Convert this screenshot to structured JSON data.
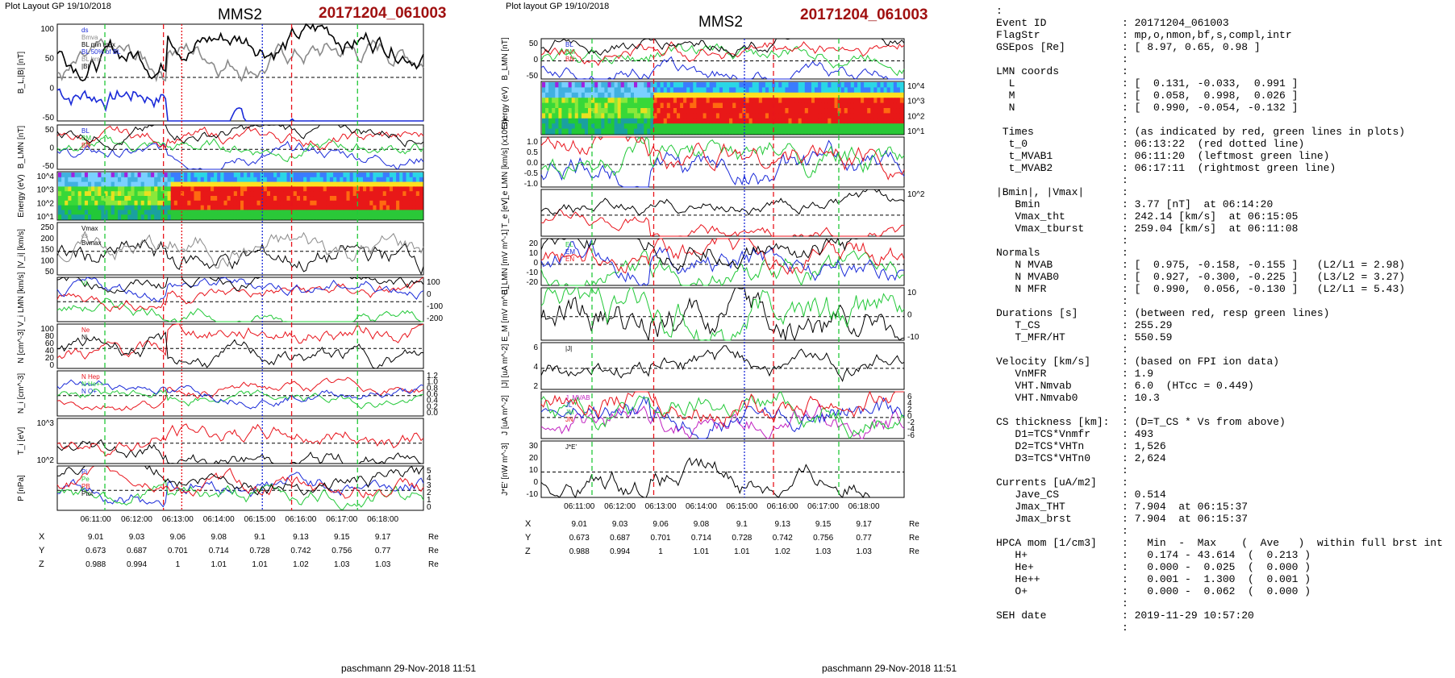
{
  "left": {
    "plot_layout": "Plot Layout GP 19/10/2018",
    "spacecraft": "MMS2",
    "event": "20171204_061003",
    "footer": "paschmann 29-Nov-2018 11:51"
  },
  "mid": {
    "plot_layout": "Plot layout GP 19/10/2018",
    "spacecraft": "MMS2",
    "event": "20171204_061003",
    "footer": "paschmann 29-Nov-2018 11:51"
  },
  "chart_data": [
    {
      "type": "line",
      "id": "left-stack",
      "time_ticks": [
        "06:11:00",
        "06:12:00",
        "06:13:00",
        "06:14:00",
        "06:15:00",
        "06:16:00",
        "06:17:00",
        "06:18:00"
      ],
      "coords": {
        "rows": [
          {
            "label": "X",
            "values": [
              "9.01",
              "9.03",
              "9.06",
              "9.08",
              "9.1",
              "9.13",
              "9.15",
              "9.17"
            ],
            "unit": "Re"
          },
          {
            "label": "Y",
            "values": [
              "0.673",
              "0.687",
              "0.701",
              "0.714",
              "0.728",
              "0.742",
              "0.756",
              "0.77"
            ],
            "unit": "Re"
          },
          {
            "label": "Z",
            "values": [
              "0.988",
              "0.994",
              "1",
              "1.01",
              "1.01",
              "1.02",
              "1.03",
              "1.03"
            ],
            "unit": "Re"
          }
        ]
      },
      "panels": [
        {
          "ylabel": "B_L,|B| [nT]",
          "yticks": [
            "100",
            "50",
            "0",
            "-50"
          ],
          "legend": [
            "ds",
            "Bmva",
            "BL min max",
            "BL 50% of BL",
            "BL brst",
            "|B|"
          ]
        },
        {
          "ylabel": "B_LMN [nT]",
          "yticks": [
            "50",
            "0",
            "-50"
          ],
          "legend": [
            "BL",
            "BM",
            "BN"
          ]
        },
        {
          "ylabel": "Energy (eV)",
          "yticks": [
            "10^4",
            "10^3",
            "10^2",
            "10^1"
          ],
          "spectrogram": true
        },
        {
          "ylabel": "|V_i| [km/s]",
          "yticks": [
            "250",
            "200",
            "150",
            "100",
            "50"
          ],
          "legend": [
            "Vmax",
            "cs",
            "Bvmax"
          ]
        },
        {
          "ylabel": "V_i LMN [km/s]",
          "yticks_right": [
            "100",
            "0",
            "-100",
            "-200"
          ],
          "legend": [
            "VL"
          ]
        },
        {
          "ylabel": "N [cm^-3]",
          "yticks": [
            "100",
            "80",
            "60",
            "40",
            "20",
            "0"
          ],
          "legend": [
            "Ne",
            "Ni"
          ]
        },
        {
          "ylabel": "N_i [cm^-3]",
          "yticks_right": [
            "1.2",
            "1.0",
            "0.8",
            "0.6",
            "0.4",
            "0.2",
            "0.0"
          ],
          "legend": [
            "N Hep",
            "N He++",
            "N O+"
          ]
        },
        {
          "ylabel": "T_i [eV]",
          "yticks": [
            "10^3",
            "10^2"
          ]
        },
        {
          "ylabel": "P [nPa]",
          "yticks_right": [
            "5",
            "4",
            "3",
            "2",
            "1",
            "0"
          ],
          "legend": [
            "Pi",
            "Pe",
            "PB",
            "Ptot"
          ]
        }
      ]
    },
    {
      "type": "line",
      "id": "mid-stack",
      "time_ticks": [
        "06:11:00",
        "06:12:00",
        "06:13:00",
        "06:14:00",
        "06:15:00",
        "06:16:00",
        "06:17:00",
        "06:18:00"
      ],
      "coords": {
        "rows": [
          {
            "label": "X",
            "values": [
              "9.01",
              "9.03",
              "9.06",
              "9.08",
              "9.1",
              "9.13",
              "9.15",
              "9.17"
            ],
            "unit": "Re"
          },
          {
            "label": "Y",
            "values": [
              "0.673",
              "0.687",
              "0.701",
              "0.714",
              "0.728",
              "0.742",
              "0.756",
              "0.77"
            ],
            "unit": "Re"
          },
          {
            "label": "Z",
            "values": [
              "0.988",
              "0.994",
              "1",
              "1.01",
              "1.01",
              "1.02",
              "1.03",
              "1.03"
            ],
            "unit": "Re"
          }
        ]
      },
      "panels": [
        {
          "ylabel": "B_LMN [nT]",
          "yticks": [
            "50",
            "0",
            "-50"
          ],
          "legend": [
            "BL",
            "BM",
            "BN"
          ]
        },
        {
          "ylabel": "Energy (eV)",
          "yticks_right": [
            "10^4",
            "10^3",
            "10^2",
            "10^1"
          ],
          "spectrogram": true
        },
        {
          "ylabel": "V_e LMN [km/s] (x10^3)",
          "yticks": [
            "1.0",
            "0.5",
            "0.0",
            "-0.5",
            "-1.0"
          ]
        },
        {
          "ylabel": "T_e [eV]",
          "yticks_right": [
            "10^2"
          ]
        },
        {
          "ylabel": "E_LMN [mV m^-1]",
          "yticks": [
            "20",
            "10",
            "0",
            "-10",
            "-20"
          ],
          "legend": [
            "EL",
            "EM",
            "EN"
          ]
        },
        {
          "ylabel": "E_M [mV m^-1]",
          "yticks_right": [
            "10",
            "0",
            "-10"
          ]
        },
        {
          "ylabel": "|J| [uA m^-2]",
          "yticks": [
            "6",
            "4",
            "2"
          ],
          "legend": [
            "|J|"
          ]
        },
        {
          "ylabel": "J [uA m^-2]",
          "yticks_right": [
            "6",
            "4",
            "2",
            "0",
            "-2",
            "-4",
            "-6"
          ],
          "legend": [
            "J_MVAB",
            "JL",
            "JM",
            "JN"
          ]
        },
        {
          "ylabel": "J*E' [nW m^-3]",
          "yticks": [
            "30",
            "20",
            "10",
            "0",
            "-10"
          ],
          "legend": [
            "J*E'"
          ]
        }
      ]
    }
  ],
  "info": {
    "lines": [
      ":",
      "Event ID            : 20171204_061003",
      "FlagStr             : mp,o,nmon,bf,s,compl,intr",
      "GSEpos [Re]         : [ 8.97, 0.65, 0.98 ]",
      "                    :",
      "LMN coords          :",
      "  L                 : [  0.131, -0.033,  0.991 ]",
      "  M                 : [  0.058,  0.998,  0.026 ]",
      "  N                 : [  0.990, -0.054, -0.132 ]",
      "                    :",
      " Times              : (as indicated by red, green lines in plots)",
      "  t_0               : 06:13:22  (red dotted line)",
      "  t_MVAB1           : 06:11:20  (leftmost green line)",
      "  t_MVAB2           : 06:17:11  (rightmost green line)",
      "                    :",
      "|Bmin|, |Vmax|      :",
      "   Bmin             : 3.77 [nT]  at 06:14:20",
      "   Vmax_tht         : 242.14 [km/s]  at 06:15:05",
      "   Vmax_tburst      : 259.04 [km/s]  at 06:11:08",
      "                    :",
      "Normals             :",
      "   N MVAB           : [  0.975, -0.158, -0.155 ]   (L2/L1 = 2.98)",
      "   N MVAB0          : [  0.927, -0.300, -0.225 ]   (L3/L2 = 3.27)",
      "   N MFR            : [  0.990,  0.056, -0.130 ]   (L2/L1 = 5.43)",
      "                    :",
      "Durations [s]       : (between red, resp green lines)",
      "   T_CS             : 255.29",
      "   T_MFR/HT         : 550.59",
      "                    :",
      "Velocity [km/s]     : (based on FPI ion data)",
      "   VnMFR            : 1.9",
      "   VHT.Nmvab        : 6.0  (HTcc = 0.449)",
      "   VHT.Nmvab0       : 10.3",
      "                    :",
      "CS thickness [km]:  : (D=T_CS * Vs from above)",
      "   D1=TCS*Vnmfr     : 493",
      "   D2=TCS*VHTn      : 1,526",
      "   D3=TCS*VHTn0     : 2,624",
      "                    :",
      "Currents [uA/m2]    :",
      "   Jave_CS          : 0.514",
      "   Jmax_THT         : 7.904  at 06:15:37",
      "   Jmax_brst        : 7.904  at 06:15:37",
      "                    :",
      "HPCA mom [1/cm3]    :   Min  -  Max    (  Ave   )  within full brst int",
      "   H+               :   0.174 - 43.614  (  0.213 )",
      "   He+              :   0.000 -  0.025  (  0.000 )",
      "   He++             :   0.001 -  1.300  (  0.001 )",
      "   O+               :   0.000 -  0.062  (  0.000 )",
      "                    :",
      "SEH date            : 2019-11-29 10:57:20",
      "                    :"
    ]
  }
}
